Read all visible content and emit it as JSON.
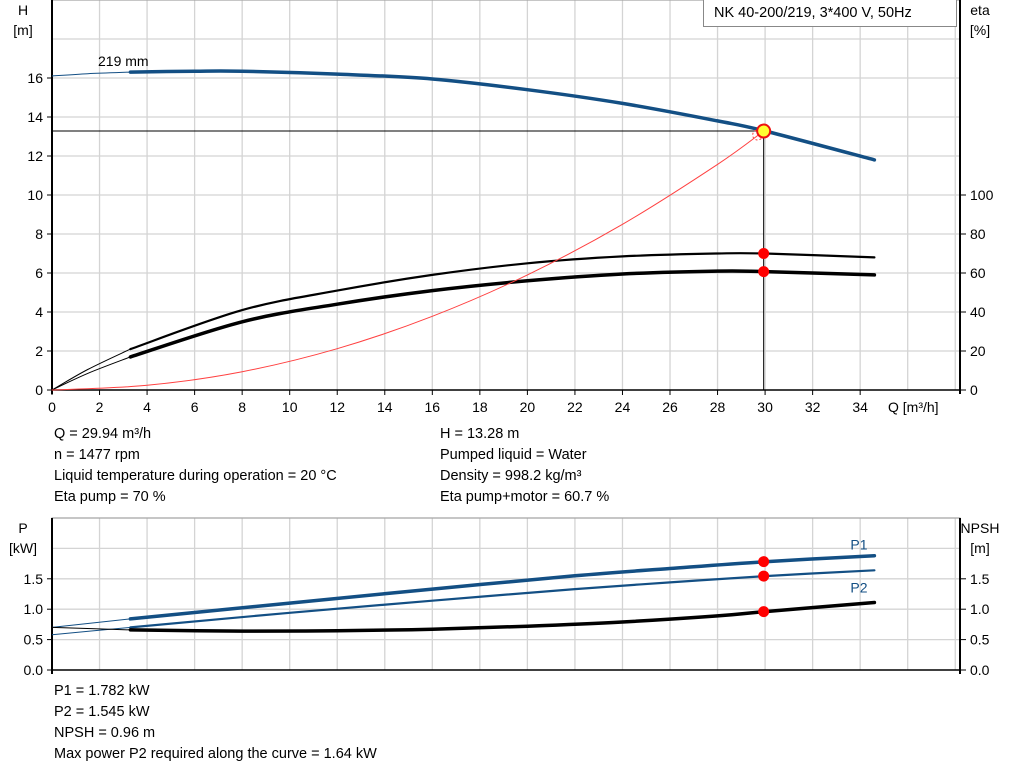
{
  "title": "NK 40-200/219, 3*400 V, 50Hz",
  "chart_data": [
    {
      "type": "line",
      "x_label": "Q [m³/h]",
      "y_label_left": [
        "H",
        "[m]"
      ],
      "y_label_right": [
        "eta",
        "[%]"
      ],
      "xlim": [
        0,
        38.2
      ],
      "ylim_left": [
        0,
        20
      ],
      "ylim_right": [
        0,
        200
      ],
      "x_ticks": [
        0,
        2,
        4,
        6,
        8,
        10,
        12,
        14,
        16,
        18,
        20,
        22,
        24,
        26,
        28,
        30,
        32,
        34
      ],
      "y_ticks_left": [
        0,
        2,
        4,
        6,
        8,
        10,
        12,
        14,
        16
      ],
      "y_ticks_right": [
        0,
        20,
        40,
        60,
        80,
        100
      ],
      "grid": true,
      "curve_label": "219 mm",
      "series": [
        {
          "key": "H",
          "axis": "left",
          "color": "#134f84",
          "extrapolated": [
            [
              0,
              16.1
            ],
            [
              1.5,
              16.22
            ],
            [
              3.3,
              16.3
            ]
          ],
          "points": [
            [
              3.3,
              16.3
            ],
            [
              6,
              16.35
            ],
            [
              8,
              16.35
            ],
            [
              12,
              16.2
            ],
            [
              16,
              15.95
            ],
            [
              20,
              15.4
            ],
            [
              24,
              14.7
            ],
            [
              28,
              13.8
            ],
            [
              30,
              13.28
            ],
            [
              34.6,
              11.8
            ]
          ]
        },
        {
          "key": "eta_pump",
          "axis": "right",
          "color": "#000000",
          "extrapolated": [
            [
              0,
              0
            ],
            [
              1.5,
              10.5
            ],
            [
              3.3,
              21
            ]
          ],
          "points": [
            [
              3.3,
              21
            ],
            [
              8,
              41
            ],
            [
              12,
              51
            ],
            [
              16,
              59
            ],
            [
              20,
              65
            ],
            [
              24,
              68.5
            ],
            [
              28,
              70
            ],
            [
              30,
              70
            ],
            [
              34.6,
              68
            ]
          ]
        },
        {
          "key": "eta_pump_motor",
          "axis": "right",
          "color": "#000000",
          "extrapolated": [
            [
              0,
              0
            ],
            [
              1.5,
              8.5
            ],
            [
              3.3,
              17
            ]
          ],
          "points": [
            [
              3.3,
              17
            ],
            [
              8,
              35
            ],
            [
              12,
              44
            ],
            [
              16,
              51
            ],
            [
              20,
              56
            ],
            [
              24,
              59.5
            ],
            [
              28,
              61
            ],
            [
              30,
              60.7
            ],
            [
              34.6,
              59
            ]
          ]
        },
        {
          "key": "system_curve",
          "axis": "left",
          "color": "#ff4040",
          "points": [
            [
              0,
              0
            ],
            [
              4,
              0.24
            ],
            [
              8,
              0.94
            ],
            [
              12,
              2.12
            ],
            [
              16,
              3.78
            ],
            [
              20,
              5.9
            ],
            [
              24,
              8.5
            ],
            [
              28,
              11.57
            ],
            [
              29.94,
              13.28
            ]
          ]
        }
      ],
      "operating_point": {
        "Q": 29.94,
        "H": 13.28,
        "eta_pump": 70,
        "eta_pump_motor": 60.7
      }
    },
    {
      "type": "line",
      "y_label_left": [
        "P",
        "[kW]"
      ],
      "y_label_right": [
        "NPSH",
        "[m]"
      ],
      "xlim": [
        0,
        38.2
      ],
      "ylim_left": [
        0,
        2.5
      ],
      "ylim_right": [
        0,
        2.5
      ],
      "y_ticks_left": [
        "0.0",
        "0.5",
        "1.0",
        "1.5"
      ],
      "y_ticks_right": [
        "0.0",
        "0.5",
        "1.0",
        "1.5"
      ],
      "grid": true,
      "series": [
        {
          "key": "P1",
          "name": "P1",
          "axis": "left",
          "color": "#134f84",
          "extrapolated": [
            [
              0,
              0.7
            ],
            [
              3.3,
              0.84
            ]
          ],
          "points": [
            [
              3.3,
              0.84
            ],
            [
              10,
              1.1
            ],
            [
              16,
              1.33
            ],
            [
              22,
              1.55
            ],
            [
              26,
              1.67
            ],
            [
              30,
              1.782
            ],
            [
              34.6,
              1.88
            ]
          ]
        },
        {
          "key": "P2",
          "name": "P2",
          "axis": "left",
          "color": "#134f84",
          "extrapolated": [
            [
              0,
              0.58
            ],
            [
              3.3,
              0.7
            ]
          ],
          "points": [
            [
              3.3,
              0.7
            ],
            [
              10,
              0.94
            ],
            [
              16,
              1.14
            ],
            [
              22,
              1.33
            ],
            [
              26,
              1.44
            ],
            [
              30,
              1.545
            ],
            [
              34.6,
              1.64
            ]
          ]
        },
        {
          "key": "NPSH",
          "axis": "right",
          "color": "#000000",
          "extrapolated": [
            [
              0,
              0.7
            ],
            [
              3.3,
              0.66
            ]
          ],
          "points": [
            [
              3.3,
              0.66
            ],
            [
              8,
              0.64
            ],
            [
              12,
              0.645
            ],
            [
              16,
              0.67
            ],
            [
              20,
              0.72
            ],
            [
              24,
              0.79
            ],
            [
              28,
              0.89
            ],
            [
              30,
              0.96
            ],
            [
              34.6,
              1.11
            ]
          ]
        }
      ],
      "operating_point": {
        "Q": 29.94,
        "P1": 1.782,
        "P2": 1.545,
        "NPSH": 0.96
      }
    }
  ],
  "info_top_left": [
    "Q = 29.94 m³/h",
    "n = 1477 rpm",
    "Liquid temperature during operation = 20 °C",
    "Eta pump = 70 %"
  ],
  "info_top_right": [
    "H = 13.28 m",
    "Pumped liquid = Water",
    "Density = 998.2 kg/m³",
    "Eta pump+motor = 60.7 %"
  ],
  "info_bottom": [
    "P1 = 1.782 kW",
    "P2 = 1.545 kW",
    "NPSH = 0.96 m",
    "Max power P2 required along the curve = 1.64 kW"
  ]
}
